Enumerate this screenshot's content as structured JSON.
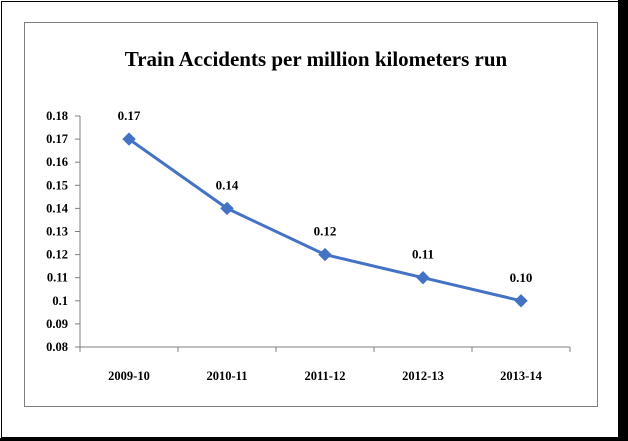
{
  "chart_data": {
    "type": "line",
    "title": "Train Accidents per million kilometers run",
    "xlabel": "",
    "ylabel": "",
    "categories": [
      "2009-10",
      "2010-11",
      "2011-12",
      "2012-13",
      "2013-14"
    ],
    "series": [
      {
        "values": [
          0.17,
          0.14,
          0.12,
          0.11,
          0.1
        ],
        "color": "#4472C4"
      }
    ],
    "data_labels": [
      "0.17",
      "0.14",
      "0.12",
      "0.11",
      "0.10"
    ],
    "ylim": [
      0.08,
      0.18
    ],
    "y_ticks": [
      "0.08",
      "0.09",
      "0.1",
      "0.11",
      "0.12",
      "0.13",
      "0.14",
      "0.15",
      "0.16",
      "0.17",
      "0.18"
    ],
    "grid": false,
    "legend": "none",
    "marker": "diamond"
  }
}
